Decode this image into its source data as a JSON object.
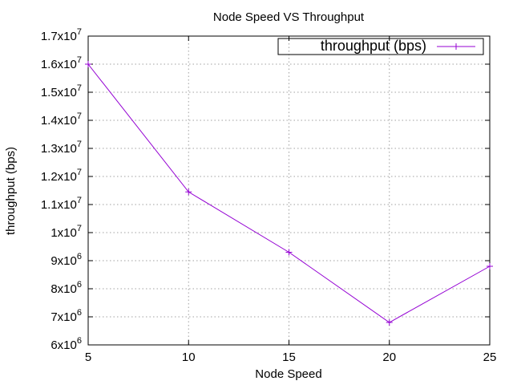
{
  "chart_data": {
    "type": "line",
    "title": "Node Speed VS Throughput",
    "xlabel": "Node Speed",
    "ylabel": "throughput (bps)",
    "x": [
      5,
      10,
      15,
      20,
      25
    ],
    "xlim": [
      5,
      25
    ],
    "ylim": [
      6000000,
      17000000
    ],
    "x_ticks": [
      5,
      10,
      15,
      20,
      25
    ],
    "y_ticks": [
      {
        "value": 6000000,
        "base": "6x10",
        "exp": "6"
      },
      {
        "value": 7000000,
        "base": "7x10",
        "exp": "6"
      },
      {
        "value": 8000000,
        "base": "8x10",
        "exp": "6"
      },
      {
        "value": 9000000,
        "base": "9x10",
        "exp": "6"
      },
      {
        "value": 10000000,
        "base": "1x10",
        "exp": "7"
      },
      {
        "value": 11000000,
        "base": "1.1x10",
        "exp": "7"
      },
      {
        "value": 12000000,
        "base": "1.2x10",
        "exp": "7"
      },
      {
        "value": 13000000,
        "base": "1.3x10",
        "exp": "7"
      },
      {
        "value": 14000000,
        "base": "1.4x10",
        "exp": "7"
      },
      {
        "value": 15000000,
        "base": "1.5x10",
        "exp": "7"
      },
      {
        "value": 16000000,
        "base": "1.6x10",
        "exp": "7"
      },
      {
        "value": 17000000,
        "base": "1.7x10",
        "exp": "7"
      }
    ],
    "grid": true,
    "legend_position": "top-right",
    "series": [
      {
        "name": "throughput (bps)",
        "color": "#9400d3",
        "marker": "plus",
        "values": [
          16000000,
          11450000,
          9300000,
          6800000,
          8800000
        ]
      }
    ]
  }
}
